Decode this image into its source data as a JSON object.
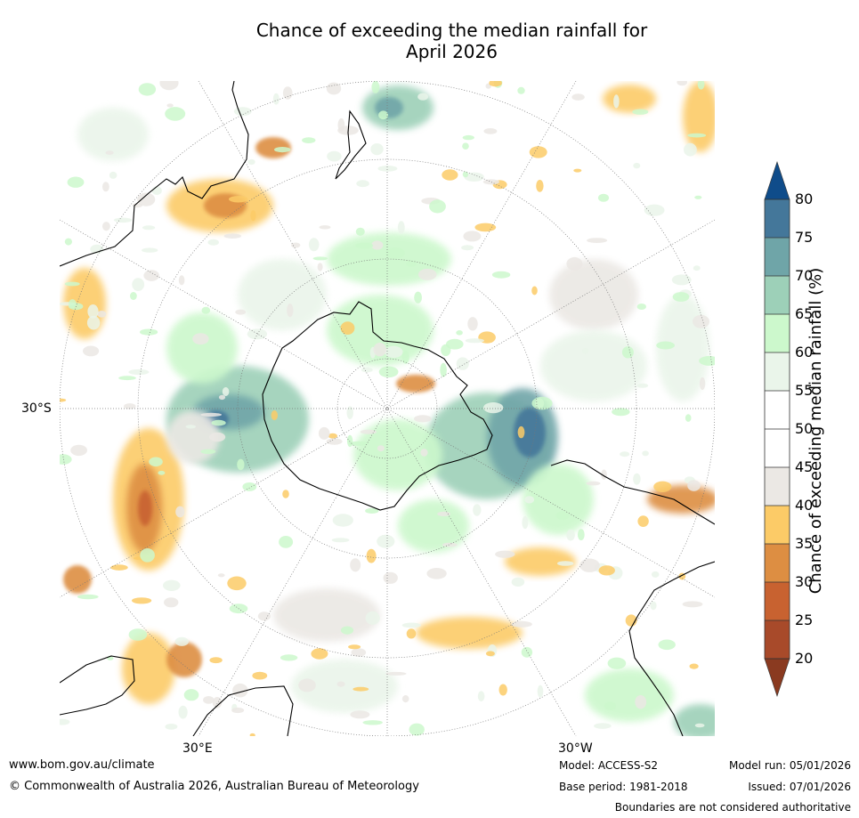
{
  "title": {
    "line1": "Chance of exceeding the median rainfall for",
    "line2": "April 2026"
  },
  "map": {
    "lat_label": "30°S",
    "lon_label_east": "30°E",
    "lon_label_west": "30°W"
  },
  "legend": {
    "title": "Chance of exceeding median rainfall (%)",
    "ticks": [
      "80",
      "75",
      "70",
      "65",
      "60",
      "55",
      "50",
      "45",
      "40",
      "35",
      "30",
      "25",
      "20"
    ],
    "colors": {
      "above_80": "#0f4c8a",
      "75_80": "#44779a",
      "70_75": "#6fa5a8",
      "65_70": "#9dd0b8",
      "60_65": "#ccf8cc",
      "55_60": "#eaf5ea",
      "45_55": "#ffffff",
      "40_45": "#ebe8e4",
      "35_40": "#fccb67",
      "30_35": "#dd8e42",
      "25_30": "#c86230",
      "20_25": "#a84a2a",
      "below_20": "#8a3a20"
    }
  },
  "footer": {
    "url": "www.bom.gov.au/climate",
    "copyright": "© Commonwealth of Australia 2026, Australian Bureau of Meteorology",
    "model": "Model: ACCESS-S2",
    "base_period": "Base period: 1981-2018",
    "model_run": "Model run: 05/01/2026",
    "issued": "Issued: 07/01/2026",
    "boundaries": "Boundaries are not considered authoritative"
  }
}
